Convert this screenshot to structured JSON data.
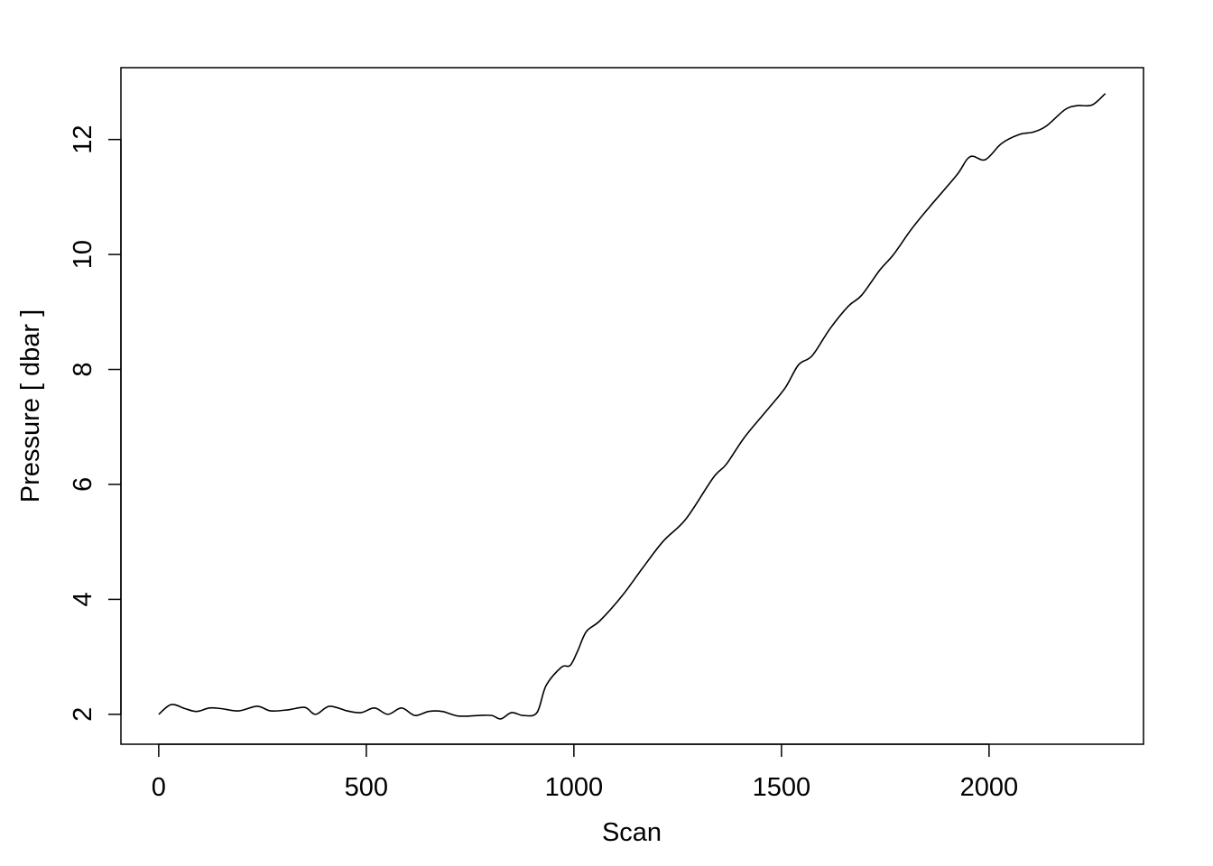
{
  "chart_data": {
    "type": "line",
    "title": "",
    "xlabel": "Scan",
    "ylabel": "Pressure [ dbar ]",
    "xlim": [
      -91,
      2372
    ],
    "ylim": [
      1.48,
      13.25
    ],
    "xticks": [
      0,
      500,
      1000,
      1500,
      2000
    ],
    "yticks": [
      2,
      4,
      6,
      8,
      10,
      12
    ],
    "grid": false,
    "line_color": "#000000",
    "series": [
      {
        "x": [
          0,
          30,
          63,
          91,
          122,
          150,
          193,
          237,
          270,
          313,
          352,
          378,
          411,
          454,
          487,
          520,
          552,
          585,
          617,
          650,
          683,
          722,
          770,
          802,
          824,
          850,
          878,
          911,
          933,
          970,
          991,
          1009,
          1030,
          1063,
          1117,
          1165,
          1215,
          1270,
          1335,
          1367,
          1411,
          1465,
          1509,
          1541,
          1574,
          1617,
          1661,
          1693,
          1737,
          1770,
          1813,
          1857,
          1922,
          1954,
          1991,
          2030,
          2074,
          2107,
          2139,
          2183,
          2213,
          2248,
          2280
        ],
        "y": [
          2.0,
          2.17,
          2.1,
          2.05,
          2.11,
          2.1,
          2.06,
          2.14,
          2.06,
          2.08,
          2.12,
          2.0,
          2.14,
          2.06,
          2.03,
          2.11,
          2.0,
          2.11,
          1.98,
          2.05,
          2.05,
          1.97,
          1.98,
          1.98,
          1.92,
          2.03,
          1.98,
          2.03,
          2.5,
          2.82,
          2.85,
          3.1,
          3.44,
          3.63,
          4.07,
          4.54,
          5.01,
          5.4,
          6.11,
          6.35,
          6.82,
          7.29,
          7.68,
          8.08,
          8.24,
          8.71,
          9.1,
          9.29,
          9.73,
          10.0,
          10.44,
          10.83,
          11.38,
          11.7,
          11.65,
          11.93,
          12.09,
          12.13,
          12.24,
          12.52,
          12.59,
          12.6,
          12.8
        ]
      }
    ]
  }
}
